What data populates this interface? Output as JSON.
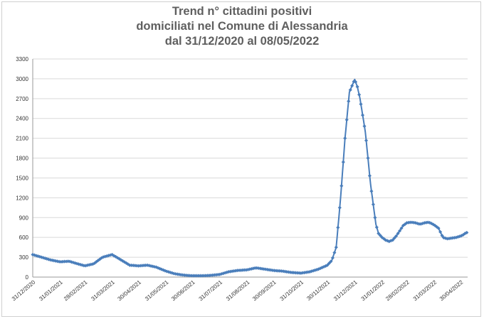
{
  "chart_data": {
    "type": "line",
    "title_lines": [
      "Trend n° cittadini positivi",
      "domiciliati nel Comune di Alessandria",
      "dal 31/12/2020 al 08/05/2022"
    ],
    "xlabel": "",
    "ylabel": "",
    "ylim": [
      0,
      3300
    ],
    "yticks": [
      0,
      300,
      600,
      900,
      1200,
      1500,
      1800,
      2100,
      2400,
      2700,
      3000,
      3300
    ],
    "xlim_days": [
      0,
      493
    ],
    "x_tick_labels": [
      "31/12/2020",
      "31/01/2021",
      "28/02/2021",
      "31/03/2021",
      "30/04/2021",
      "31/05/2021",
      "30/06/2021",
      "31/07/2021",
      "31/08/2021",
      "30/09/2021",
      "31/10/2021",
      "30/11/2021",
      "31/12/2021",
      "31/01/2022",
      "28/02/2022",
      "31/03/2022",
      "30/04/2022"
    ],
    "x_tick_days": [
      0,
      31,
      59,
      90,
      120,
      151,
      181,
      212,
      243,
      273,
      304,
      334,
      365,
      396,
      424,
      455,
      485
    ],
    "grid": true,
    "line_color": "#4a7ebb",
    "series": [
      {
        "x": [
          "31/12/2020",
          "05/01/2021",
          "10/01/2021",
          "20/01/2021",
          "31/01/2021",
          "10/02/2021",
          "20/02/2021",
          "28/02/2021",
          "10/03/2021",
          "20/03/2021",
          "31/03/2021",
          "10/04/2021",
          "20/04/2021",
          "30/04/2021",
          "10/05/2021",
          "20/05/2021",
          "31/05/2021",
          "10/06/2021",
          "20/06/2021",
          "30/06/2021",
          "10/07/2021",
          "20/07/2021",
          "31/07/2021",
          "10/08/2021",
          "20/08/2021",
          "31/08/2021",
          "10/09/2021",
          "20/09/2021",
          "30/09/2021",
          "10/10/2021",
          "20/10/2021",
          "31/10/2021",
          "10/11/2021",
          "20/11/2021",
          "30/11/2021",
          "05/12/2021",
          "10/12/2021",
          "15/12/2021",
          "20/12/2021",
          "25/12/2021",
          "31/12/2021",
          "03/01/2022",
          "06/01/2022",
          "09/01/2022",
          "12/01/2022",
          "15/01/2022",
          "18/01/2022",
          "21/01/2022",
          "24/01/2022",
          "27/01/2022",
          "31/01/2022",
          "04/02/2022",
          "08/02/2022",
          "12/02/2022",
          "16/02/2022",
          "20/02/2022",
          "24/02/2022",
          "28/02/2022",
          "05/03/2022",
          "10/03/2022",
          "15/03/2022",
          "20/03/2022",
          "25/03/2022",
          "31/03/2022",
          "05/04/2022",
          "10/04/2022",
          "15/04/2022",
          "20/04/2022",
          "25/04/2022",
          "30/04/2022",
          "03/05/2022",
          "05/05/2022",
          "08/05/2022"
        ],
        "values": [
          340,
          320,
          300,
          260,
          230,
          240,
          200,
          170,
          200,
          300,
          340,
          260,
          180,
          170,
          180,
          150,
          90,
          50,
          30,
          20,
          20,
          25,
          40,
          80,
          100,
          110,
          140,
          120,
          100,
          90,
          70,
          60,
          80,
          120,
          180,
          250,
          450,
          1200,
          2100,
          2800,
          2990,
          2880,
          2700,
          2450,
          2200,
          1800,
          1400,
          1100,
          800,
          660,
          600,
          560,
          540,
          560,
          620,
          700,
          780,
          820,
          830,
          820,
          800,
          820,
          830,
          790,
          740,
          600,
          580,
          590,
          600,
          620,
          640,
          660,
          680
        ]
      }
    ]
  }
}
